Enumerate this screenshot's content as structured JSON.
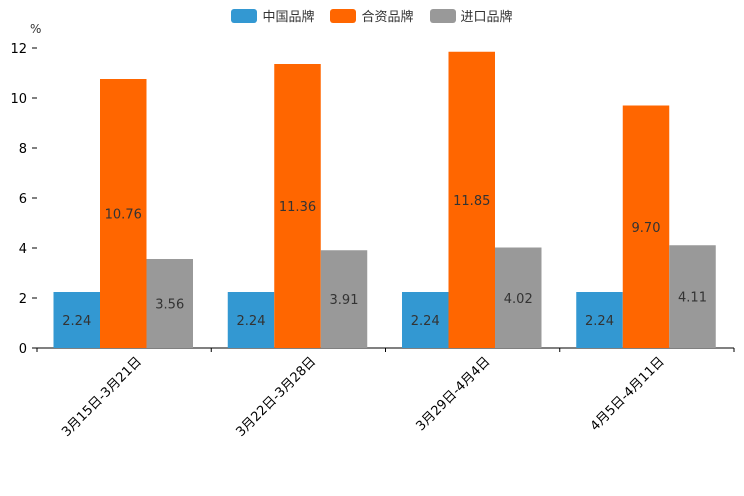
{
  "chart_data": {
    "type": "bar",
    "title": "",
    "xlabel": "",
    "ylabel": "%",
    "ylim": [
      0,
      12
    ],
    "yticks": [
      0,
      2,
      4,
      6,
      8,
      10,
      12
    ],
    "categories": [
      "3月15日-3月21日",
      "3月22日-3月28日",
      "3月29日-4月4日",
      "4月5日-4月11日"
    ],
    "series": [
      {
        "name": "中国品牌",
        "color": "#3398d2",
        "values": [
          2.24,
          2.24,
          2.24,
          2.24
        ],
        "labels": [
          "2.24",
          "2.24",
          "2.24",
          "2.24"
        ]
      },
      {
        "name": "合资品牌",
        "color": "#ff6600",
        "values": [
          10.76,
          11.36,
          11.85,
          9.7
        ],
        "labels": [
          "10.76",
          "11.36",
          "11.85",
          "9.70"
        ]
      },
      {
        "name": "进口品牌",
        "color": "#999999",
        "values": [
          3.56,
          3.91,
          4.02,
          4.11
        ],
        "labels": [
          "3.56",
          "3.91",
          "4.02",
          "4.11"
        ]
      }
    ],
    "legend_position": "top-center",
    "grid": false
  }
}
